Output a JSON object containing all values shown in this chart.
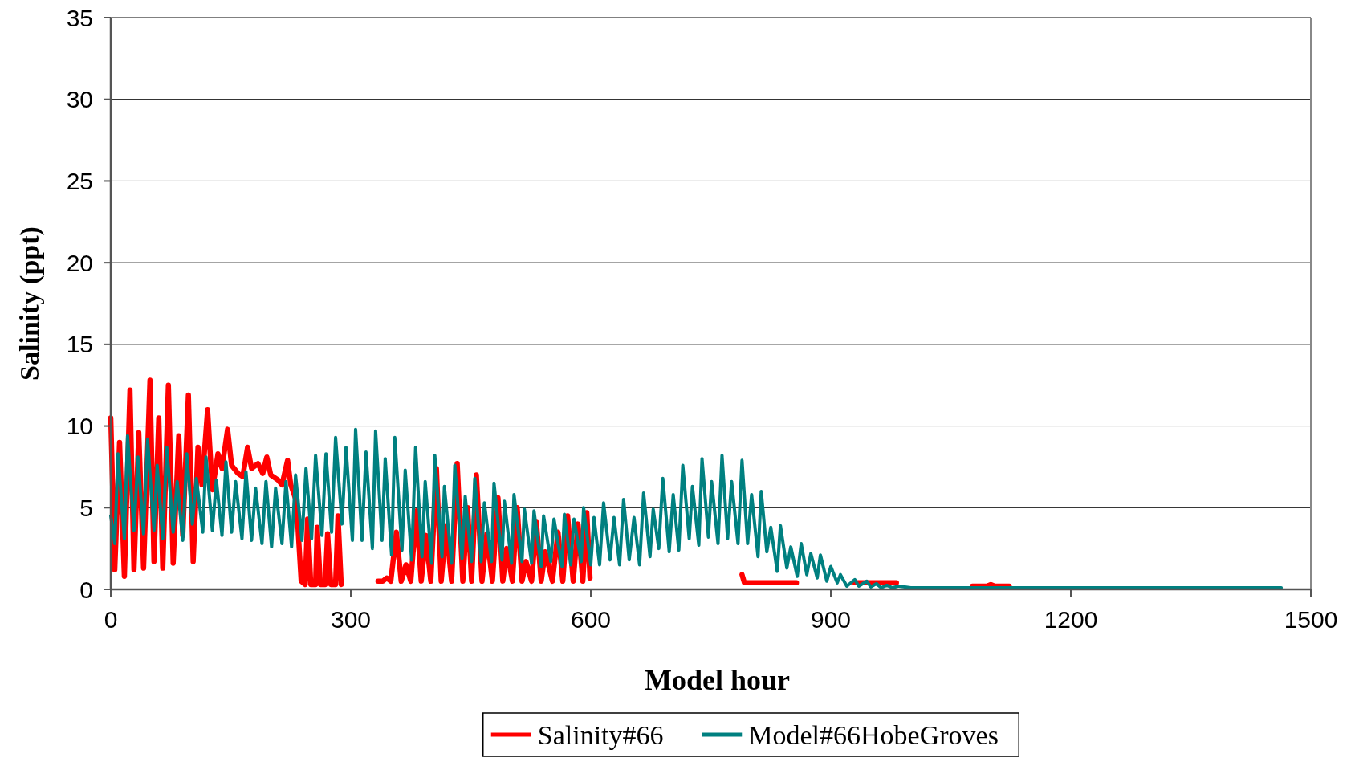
{
  "chart_data": {
    "type": "line",
    "xlabel": "Model hour",
    "ylabel": "Salinity (ppt)",
    "xlim": [
      0,
      1500
    ],
    "xticks": [
      0,
      300,
      600,
      900,
      1200,
      1500
    ],
    "ylim": [
      0,
      35
    ],
    "yticks": [
      0,
      5,
      10,
      15,
      20,
      25,
      30,
      35
    ],
    "grid": "y",
    "legend": "bottom",
    "marker": "none",
    "line_style": "solid",
    "series": [
      {
        "name": "Salinity#66",
        "color": "#ff0000",
        "x": [
          0,
          5,
          11,
          17,
          24,
          29,
          35,
          41,
          49,
          54,
          60,
          65,
          72,
          78,
          85,
          90,
          97,
          103,
          109,
          114,
          121,
          127,
          134,
          139,
          146,
          151,
          159,
          165,
          171,
          176,
          184,
          190,
          195,
          200,
          209,
          214,
          221,
          225,
          232,
          238,
          243,
          246,
          250,
          256,
          258,
          262,
          268,
          271,
          275,
          281,
          284,
          288,
          310,
          334,
          340,
          345,
          350,
          357,
          363,
          369,
          375,
          382,
          388,
          394,
          400,
          407,
          413,
          419,
          426,
          433,
          440,
          446,
          451,
          457,
          464,
          470,
          477,
          484,
          490,
          495,
          502,
          508,
          514,
          519,
          526,
          532,
          538,
          543,
          552,
          559,
          565,
          571,
          578,
          584,
          590,
          595,
          599,
          700,
          789,
          792,
          857,
          900,
          930,
          982,
          1030,
          1077,
          1095,
          1100,
          1105,
          1123
        ],
        "values": [
          10.5,
          1.2,
          9.0,
          0.8,
          12.2,
          1.2,
          9.6,
          1.3,
          12.8,
          1.7,
          10.5,
          1.3,
          12.5,
          1.6,
          9.4,
          3.3,
          11.9,
          1.7,
          8.7,
          6.4,
          11.0,
          6.1,
          8.3,
          7.4,
          9.8,
          7.6,
          7.1,
          6.9,
          8.7,
          7.4,
          7.7,
          7.1,
          8.1,
          7.0,
          6.7,
          6.4,
          7.9,
          6.4,
          5.4,
          0.5,
          0.3,
          4.3,
          0.3,
          0.3,
          3.8,
          0.3,
          0.3,
          3.4,
          0.3,
          0.3,
          4.5,
          0.3,
          null,
          0.5,
          0.5,
          0.7,
          0.5,
          3.5,
          0.5,
          1.5,
          0.5,
          4.8,
          0.5,
          3.3,
          0.5,
          7.4,
          0.5,
          3.9,
          0.5,
          7.7,
          0.5,
          5.0,
          0.5,
          7.0,
          0.5,
          3.4,
          0.5,
          5.6,
          0.5,
          2.5,
          0.5,
          5.0,
          0.5,
          1.7,
          0.5,
          4.1,
          0.5,
          2.3,
          0.5,
          3.5,
          0.5,
          4.5,
          0.5,
          4.0,
          0.5,
          4.7,
          0.7,
          null,
          0.9,
          0.4,
          0.4,
          null,
          0.4,
          0.4,
          null,
          0.2,
          0.2,
          0.3,
          0.2,
          0.2
        ]
      },
      {
        "name": "Model#66HobeGroves",
        "color": "#008080",
        "x": [
          0,
          5,
          9,
          17,
          21,
          29,
          34,
          41,
          46,
          54,
          58,
          65,
          70,
          78,
          83,
          90,
          95,
          102,
          107,
          115,
          119,
          127,
          132,
          139,
          144,
          151,
          156,
          164,
          169,
          176,
          181,
          189,
          194,
          201,
          206,
          214,
          219,
          226,
          231,
          239,
          244,
          251,
          256,
          264,
          269,
          276,
          281,
          289,
          294,
          302,
          306,
          314,
          319,
          327,
          331,
          339,
          343,
          351,
          355,
          364,
          368,
          376,
          381,
          389,
          393,
          401,
          405,
          414,
          417,
          426,
          430,
          439,
          443,
          451,
          455,
          463,
          467,
          476,
          479,
          489,
          492,
          501,
          504,
          514,
          517,
          526,
          529,
          538,
          541,
          550,
          554,
          564,
          567,
          575,
          579,
          588,
          591,
          600,
          604,
          611,
          616,
          624,
          629,
          636,
          641,
          648,
          654,
          661,
          666,
          674,
          678,
          685,
          690,
          698,
          703,
          710,
          715,
          723,
          727,
          735,
          739,
          747,
          751,
          759,
          764,
          771,
          776,
          784,
          789,
          796,
          801,
          809,
          813,
          820,
          825,
          833,
          837,
          845,
          850,
          858,
          863,
          870,
          875,
          883,
          887,
          895,
          900,
          908,
          912,
          920,
          930,
          935,
          945,
          950,
          957,
          963,
          970,
          977,
          985,
          1000,
          1100,
          1200,
          1300,
          1400,
          1463
        ],
        "values": [
          4.5,
          2.8,
          8.3,
          3.1,
          9.4,
          3.6,
          8.1,
          3.4,
          9.2,
          3.6,
          7.6,
          3.1,
          8.7,
          3.5,
          6.6,
          3.0,
          8.3,
          4.0,
          6.8,
          3.5,
          8.1,
          3.6,
          6.7,
          3.3,
          7.8,
          3.5,
          6.6,
          3.1,
          7.2,
          3.0,
          6.2,
          2.8,
          6.6,
          2.6,
          6.2,
          2.8,
          6.6,
          2.6,
          7.0,
          3.0,
          7.4,
          3.1,
          8.2,
          3.3,
          8.3,
          3.5,
          9.3,
          4.0,
          8.7,
          3.0,
          9.8,
          3.0,
          8.4,
          2.5,
          9.7,
          3.0,
          8.0,
          2.1,
          9.3,
          2.4,
          7.3,
          1.8,
          8.7,
          2.0,
          6.6,
          1.6,
          8.2,
          2.0,
          6.3,
          1.6,
          7.6,
          1.9,
          5.7,
          1.7,
          6.8,
          1.7,
          5.3,
          1.7,
          6.5,
          1.8,
          5.4,
          1.6,
          5.8,
          1.7,
          4.9,
          1.6,
          4.8,
          1.4,
          4.5,
          1.7,
          4.3,
          1.4,
          4.6,
          1.5,
          4.3,
          1.7,
          5.0,
          1.5,
          4.4,
          1.5,
          5.3,
          1.8,
          4.4,
          1.5,
          5.5,
          1.8,
          4.4,
          1.5,
          5.9,
          2.0,
          4.9,
          2.5,
          6.8,
          2.3,
          5.8,
          2.4,
          7.6,
          3.1,
          6.3,
          2.7,
          8.0,
          3.2,
          6.6,
          2.8,
          8.2,
          3.1,
          6.6,
          2.8,
          7.9,
          2.8,
          5.8,
          2.0,
          6.0,
          2.3,
          3.8,
          1.1,
          3.9,
          1.3,
          2.6,
          0.8,
          2.8,
          0.9,
          2.2,
          0.7,
          2.1,
          0.5,
          1.4,
          0.4,
          0.9,
          0.2,
          0.6,
          0.2,
          0.5,
          0.15,
          0.35,
          0.1,
          0.25,
          0.1,
          0.2,
          0.1,
          0.1,
          0.1,
          0.1,
          0.1,
          0.1
        ]
      }
    ]
  }
}
